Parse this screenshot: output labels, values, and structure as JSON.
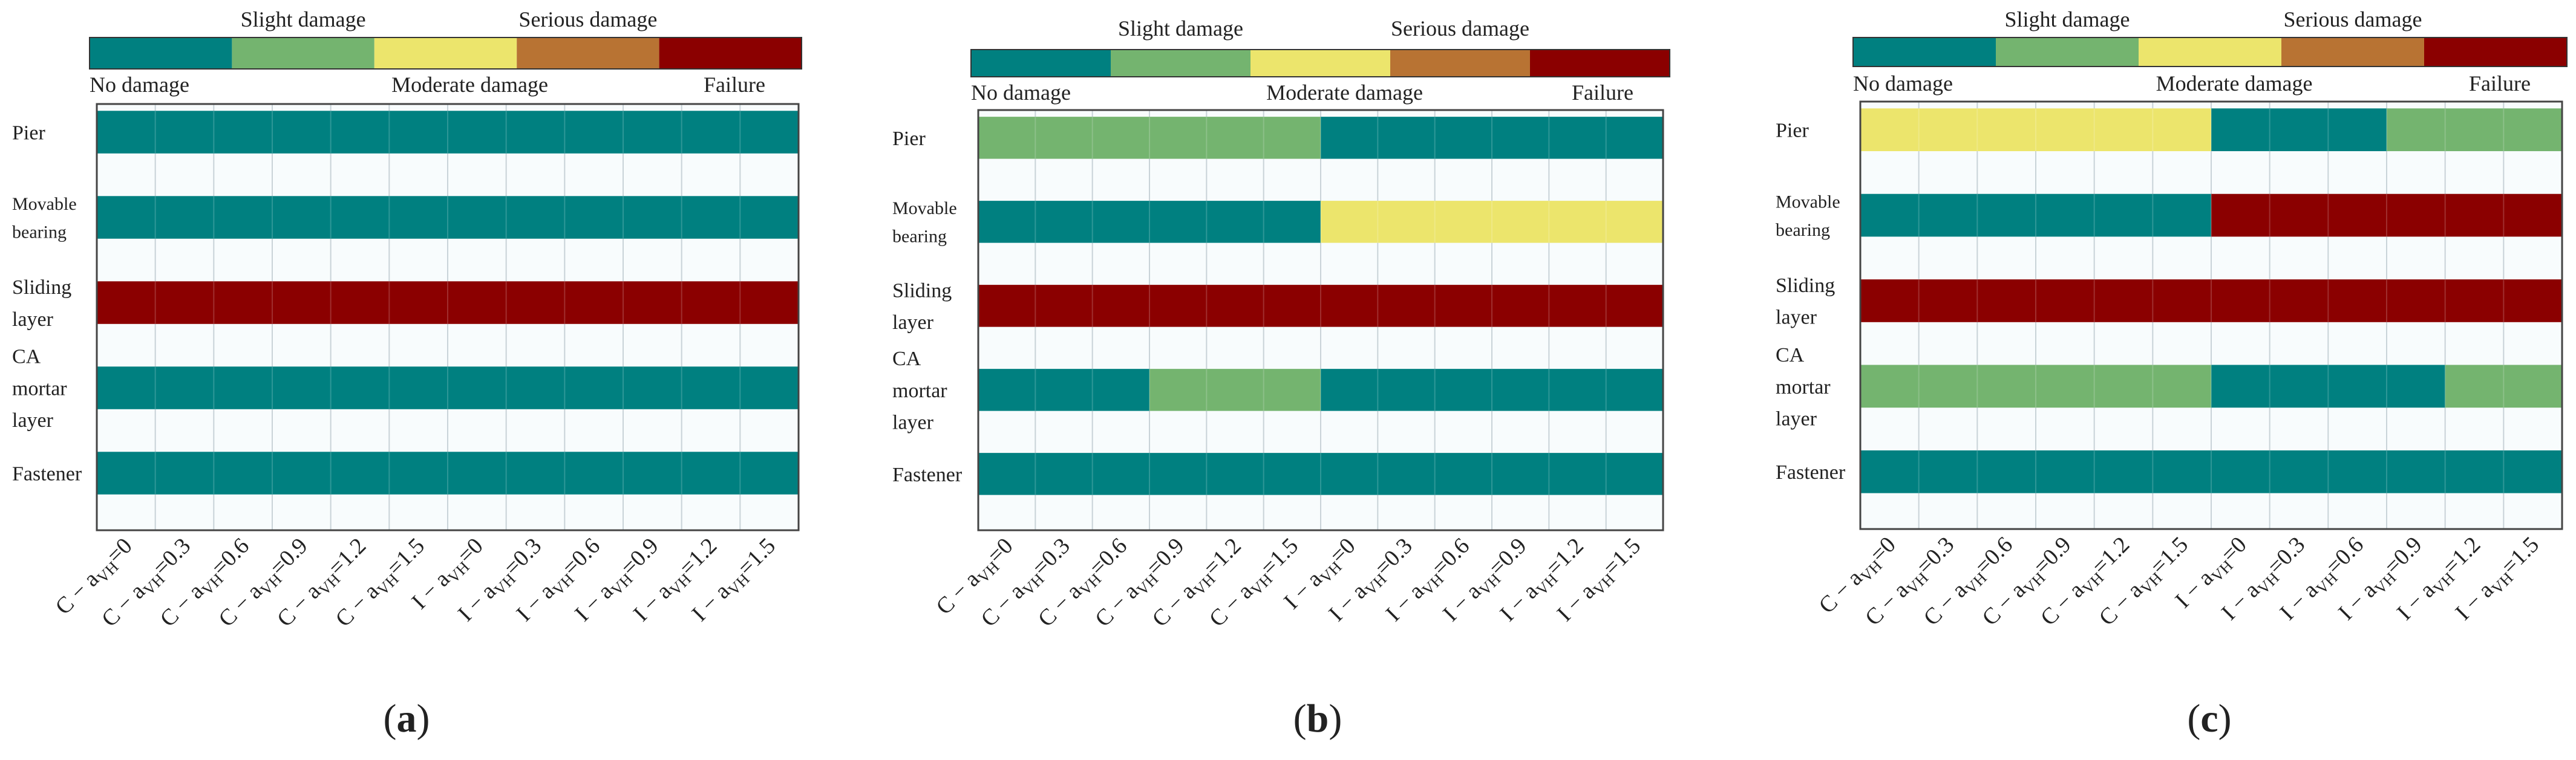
{
  "legend": {
    "levels": [
      {
        "label": "No damage",
        "color": "#008080"
      },
      {
        "label": "Slight damage",
        "color": "#74b46f"
      },
      {
        "label": "Moderate damage",
        "color": "#ece56c"
      },
      {
        "label": "Serious damage",
        "color": "#b87333"
      },
      {
        "label": "Failure",
        "color": "#8b0000"
      }
    ]
  },
  "chart_data": [
    {
      "type": "heatmap",
      "title": "(a)",
      "rows": [
        "Pier",
        "Movable bearing",
        "Sliding layer",
        "CA mortar layer",
        "Fastener"
      ],
      "columns": [
        "C-aVH=0",
        "C-aVH=0.3",
        "C-aVH=0.6",
        "C-aVH=0.9",
        "C-aVH=1.2",
        "C-aVH=1.5",
        "I-aVH=0",
        "I-aVH=0.3",
        "I-aVH=0.6",
        "I-aVH=0.9",
        "I-aVH=1.2",
        "I-aVH=1.5"
      ],
      "levels": [
        "No damage",
        "Slight damage",
        "Moderate damage",
        "Serious damage",
        "Failure"
      ],
      "values": [
        [
          0,
          0,
          0,
          0,
          0,
          0,
          0,
          0,
          0,
          0,
          0,
          0
        ],
        [
          0,
          0,
          0,
          0,
          0,
          0,
          0,
          0,
          0,
          0,
          0,
          0
        ],
        [
          4,
          4,
          4,
          4,
          4,
          4,
          4,
          4,
          4,
          4,
          4,
          4
        ],
        [
          0,
          0,
          0,
          0,
          0,
          0,
          0,
          0,
          0,
          0,
          0,
          0
        ],
        [
          0,
          0,
          0,
          0,
          0,
          0,
          0,
          0,
          0,
          0,
          0,
          0
        ]
      ]
    },
    {
      "type": "heatmap",
      "title": "(b)",
      "rows": [
        "Pier",
        "Movable bearing",
        "Sliding layer",
        "CA mortar layer",
        "Fastener"
      ],
      "columns": [
        "C-aVH=0",
        "C-aVH=0.3",
        "C-aVH=0.6",
        "C-aVH=0.9",
        "C-aVH=1.2",
        "C-aVH=1.5",
        "I-aVH=0",
        "I-aVH=0.3",
        "I-aVH=0.6",
        "I-aVH=0.9",
        "I-aVH=1.2",
        "I-aVH=1.5"
      ],
      "levels": [
        "No damage",
        "Slight damage",
        "Moderate damage",
        "Serious damage",
        "Failure"
      ],
      "values": [
        [
          1,
          1,
          1,
          1,
          1,
          1,
          0,
          0,
          0,
          0,
          0,
          0
        ],
        [
          0,
          0,
          0,
          0,
          0,
          0,
          2,
          2,
          2,
          2,
          2,
          2
        ],
        [
          4,
          4,
          4,
          4,
          4,
          4,
          4,
          4,
          4,
          4,
          4,
          4
        ],
        [
          0,
          0,
          0,
          1,
          1,
          1,
          0,
          0,
          0,
          0,
          0,
          0
        ],
        [
          0,
          0,
          0,
          0,
          0,
          0,
          0,
          0,
          0,
          0,
          0,
          0
        ]
      ]
    },
    {
      "type": "heatmap",
      "title": "(c)",
      "rows": [
        "Pier",
        "Movable bearing",
        "Sliding layer",
        "CA mortar layer",
        "Fastener"
      ],
      "columns": [
        "C-aVH=0",
        "C-aVH=0.3",
        "C-aVH=0.6",
        "C-aVH=0.9",
        "C-aVH=1.2",
        "C-aVH=1.5",
        "I-aVH=0",
        "I-aVH=0.3",
        "I-aVH=0.6",
        "I-aVH=0.9",
        "I-aVH=1.2",
        "I-aVH=1.5"
      ],
      "levels": [
        "No damage",
        "Slight damage",
        "Moderate damage",
        "Serious damage",
        "Failure"
      ],
      "values": [
        [
          2,
          2,
          2,
          2,
          2,
          2,
          0,
          0,
          0,
          1,
          1,
          1
        ],
        [
          0,
          0,
          0,
          0,
          0,
          0,
          4,
          4,
          4,
          4,
          4,
          4
        ],
        [
          4,
          4,
          4,
          4,
          4,
          4,
          4,
          4,
          4,
          4,
          4,
          4
        ],
        [
          1,
          1,
          1,
          1,
          1,
          1,
          0,
          0,
          0,
          0,
          1,
          1
        ],
        [
          0,
          0,
          0,
          0,
          0,
          0,
          0,
          0,
          0,
          0,
          0,
          0
        ]
      ]
    }
  ]
}
